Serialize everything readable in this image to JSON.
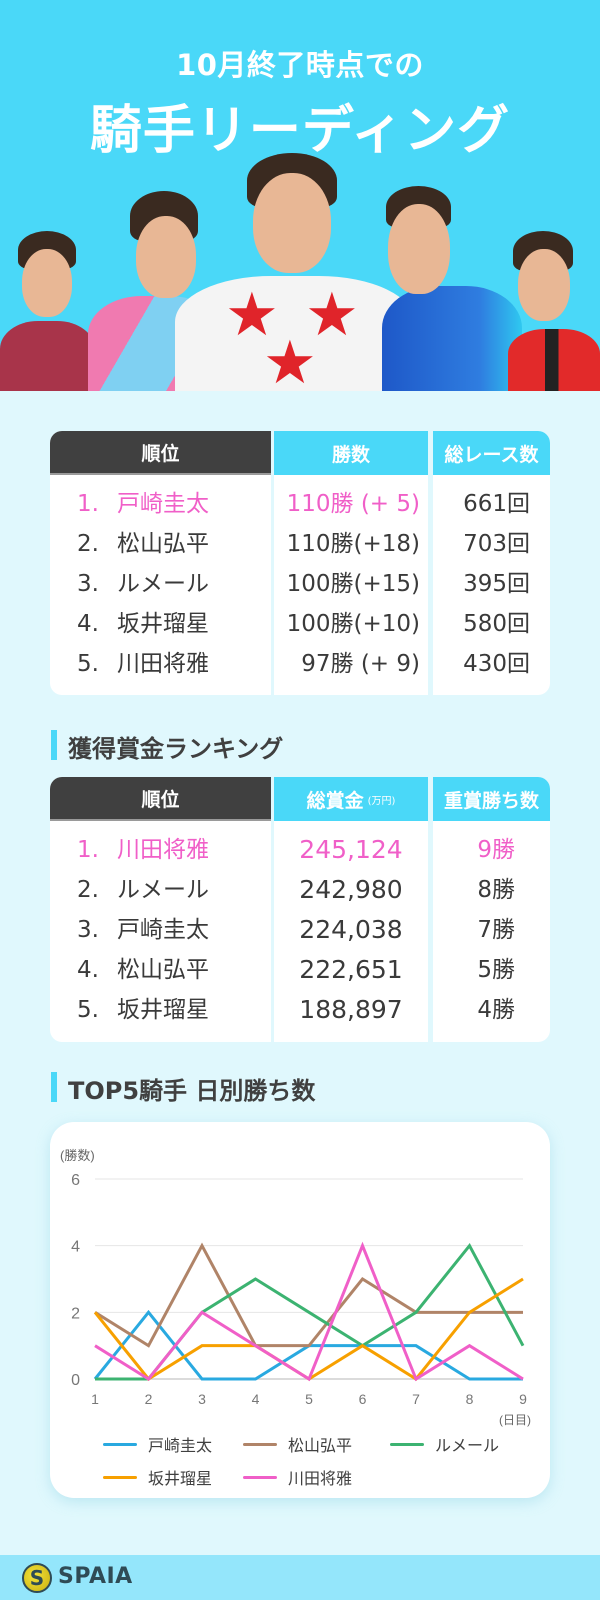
{
  "header": {
    "subtitle": "10月終了時点での",
    "title": "騎手リーディング"
  },
  "leading_table": {
    "headers": {
      "rank": "順位",
      "wins": "勝数",
      "races": "総レース数"
    },
    "rows": [
      {
        "rank": "1.",
        "name": "戸崎圭太",
        "wins": "110勝 (+ 5)",
        "races": "661回",
        "highlight": true
      },
      {
        "rank": "2.",
        "name": "松山弘平",
        "wins": "110勝(+18)",
        "races": "703回",
        "highlight": false
      },
      {
        "rank": "3.",
        "name": "ルメール",
        "wins": "100勝(+15)",
        "races": "395回",
        "highlight": false
      },
      {
        "rank": "4.",
        "name": "坂井瑠星",
        "wins": "100勝(+10)",
        "races": "580回",
        "highlight": false
      },
      {
        "rank": "5.",
        "name": "川田将雅",
        "wins": "97勝 (+ 9)",
        "races": "430回",
        "highlight": false
      }
    ]
  },
  "prize_section": {
    "title": "獲得賞金ランキング",
    "headers": {
      "rank": "順位",
      "prize": "総賞金",
      "prize_unit": "(万円)",
      "grade_wins": "重賞勝ち数"
    },
    "rows": [
      {
        "rank": "1.",
        "name": "川田将雅",
        "prize": "245,124",
        "grade_wins": "9勝",
        "highlight": true
      },
      {
        "rank": "2.",
        "name": "ルメール",
        "prize": "242,980",
        "grade_wins": "8勝",
        "highlight": false
      },
      {
        "rank": "3.",
        "name": "戸崎圭太",
        "prize": "224,038",
        "grade_wins": "7勝",
        "highlight": false
      },
      {
        "rank": "4.",
        "name": "松山弘平",
        "prize": "222,651",
        "grade_wins": "5勝",
        "highlight": false
      },
      {
        "rank": "5.",
        "name": "坂井瑠星",
        "prize": "188,897",
        "grade_wins": "4勝",
        "highlight": false
      }
    ]
  },
  "chart_section": {
    "title": "TOP5騎手 日別勝ち数"
  },
  "chart_data": {
    "type": "line",
    "title": "TOP5騎手 日別勝ち数",
    "xlabel": "(日目)",
    "ylabel": "(勝数)",
    "x": [
      1,
      2,
      3,
      4,
      5,
      6,
      7,
      8,
      9
    ],
    "yticks": [
      0,
      2,
      4,
      6
    ],
    "ylim": [
      0,
      6
    ],
    "grid": true,
    "legend_position": "bottom",
    "series": [
      {
        "name": "戸崎圭太",
        "color": "#29a9e0",
        "values": [
          0,
          2,
          0,
          0,
          1,
          1,
          1,
          0,
          0
        ]
      },
      {
        "name": "松山弘平",
        "color": "#b08468",
        "values": [
          2,
          1,
          4,
          1,
          1,
          3,
          2,
          2,
          2
        ]
      },
      {
        "name": "ルメール",
        "color": "#3cb371",
        "values": [
          0,
          0,
          2,
          3,
          2,
          1,
          2,
          4,
          1
        ]
      },
      {
        "name": "坂井瑠星",
        "color": "#f7a000",
        "values": [
          2,
          0,
          1,
          1,
          0,
          1,
          0,
          2,
          3
        ]
      },
      {
        "name": "川田将雅",
        "color": "#f05fc8",
        "values": [
          1,
          0,
          2,
          1,
          0,
          4,
          0,
          1,
          0
        ]
      }
    ]
  },
  "footer": {
    "brand": "SPAIA",
    "logo_glyph": "S"
  },
  "colors": {
    "accent": "#4ad8f8",
    "highlight": "#f05fc8",
    "dark_header": "#404040",
    "page_bg": "#e0f8fd",
    "footer_bg": "#94e6fb"
  }
}
